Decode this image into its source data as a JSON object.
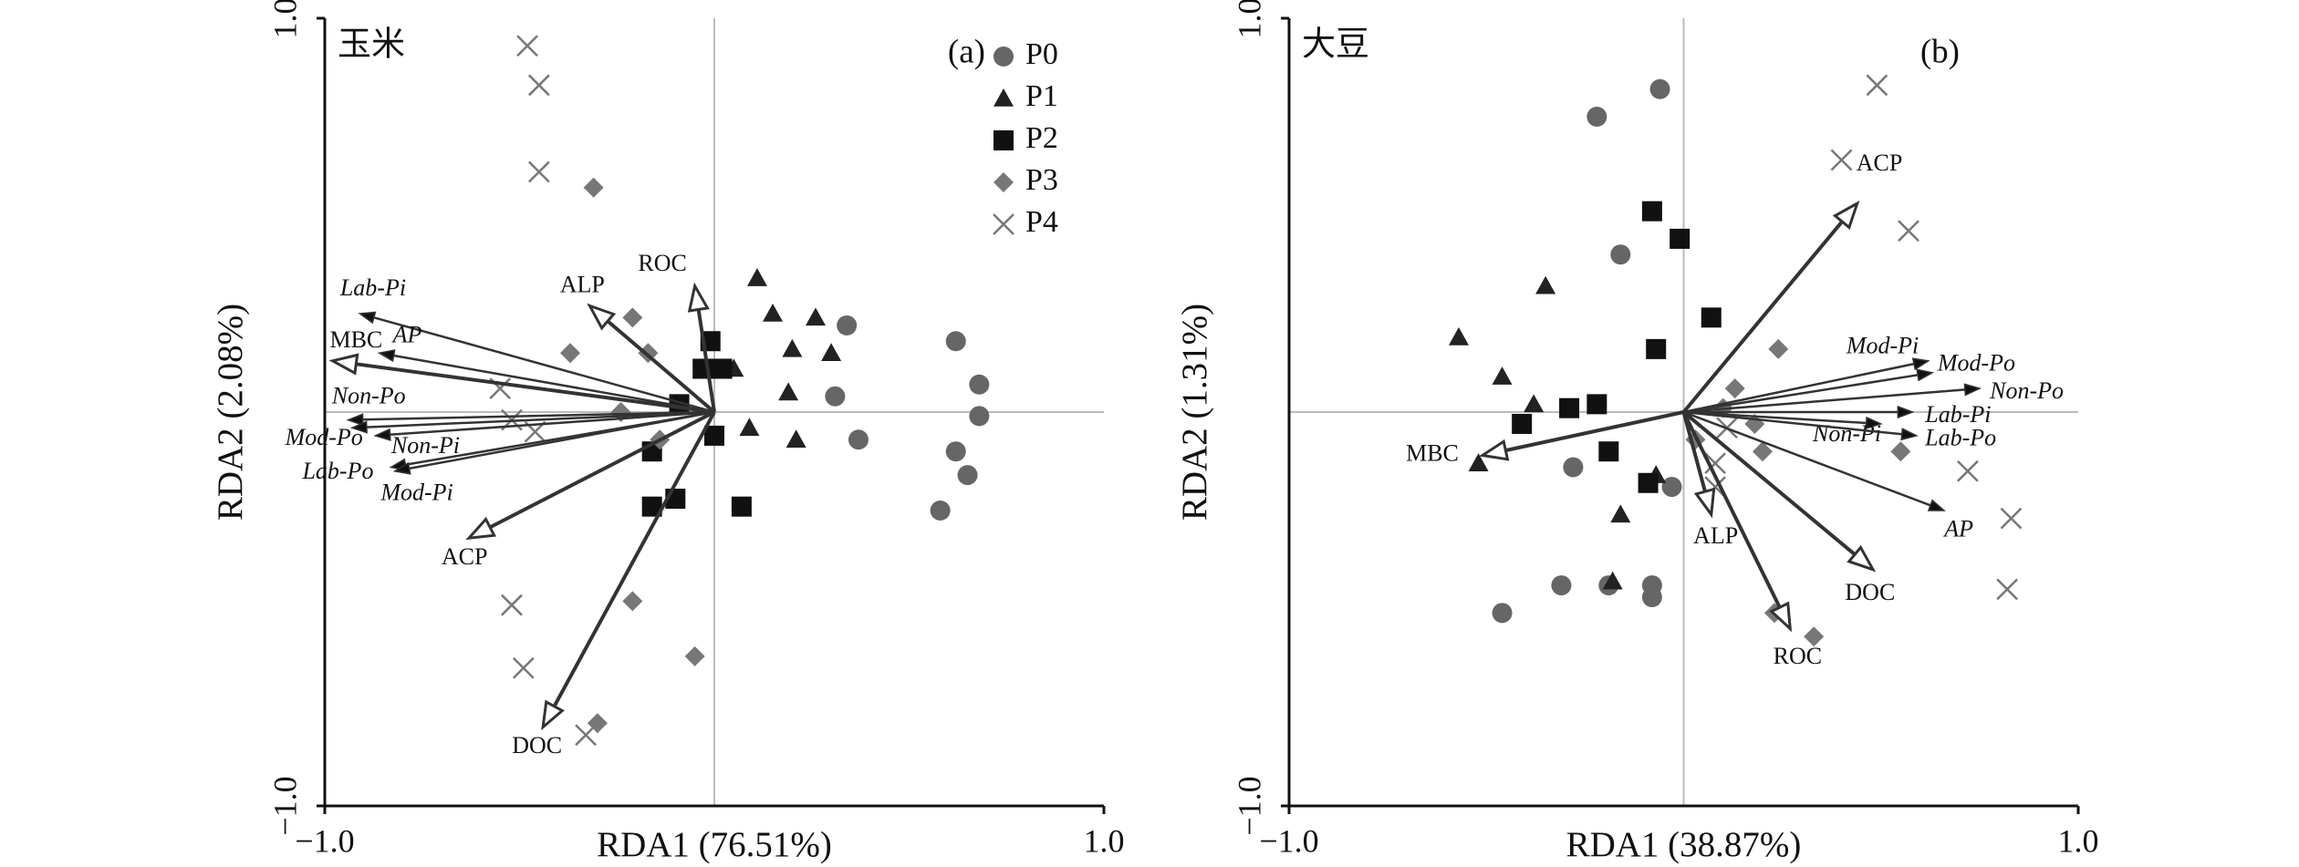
{
  "chart_data": [
    {
      "type": "biplot",
      "title": "玉米",
      "panel_label": "(a)",
      "xlabel": "RDA1 (76.51%)",
      "ylabel": "RDA2 (2.08%)",
      "xlim": [
        -1,
        1
      ],
      "ylim": [
        -1,
        1
      ],
      "xticks": [
        {
          "value": -1,
          "label": "−1.0"
        },
        {
          "value": 1,
          "label": "1.0"
        }
      ],
      "yticks": [
        {
          "value": -1,
          "label": "−1.0"
        },
        {
          "value": 1,
          "label": "1.0"
        }
      ],
      "legend": "upper right",
      "series": [
        {
          "name": "P0",
          "color": "#666666",
          "marker": "circle",
          "x": [
            0.34,
            0.31,
            0.37,
            0.62,
            0.68,
            0.68,
            0.62,
            0.65,
            0.58
          ],
          "y": [
            0.22,
            0.04,
            -0.07,
            0.18,
            0.07,
            -0.01,
            -0.1,
            -0.16,
            -0.25
          ]
        },
        {
          "name": "P1",
          "color": "#222222",
          "marker": "triangle",
          "x": [
            0.11,
            0.15,
            0.26,
            0.2,
            0.3,
            0.19,
            0.09,
            0.21,
            0.05
          ],
          "y": [
            0.34,
            0.25,
            0.24,
            0.16,
            0.15,
            0.05,
            -0.04,
            -0.07,
            0.11
          ]
        },
        {
          "name": "P2",
          "color": "#111111",
          "marker": "square",
          "x": [
            -0.01,
            -0.03,
            0.02,
            -0.09,
            0.0,
            -0.16,
            -0.1,
            -0.16,
            0.07
          ],
          "y": [
            0.18,
            0.11,
            0.11,
            0.02,
            -0.06,
            -0.1,
            -0.22,
            -0.24,
            -0.24
          ]
        },
        {
          "name": "P3",
          "color": "#777777",
          "marker": "diamond",
          "x": [
            -0.31,
            -0.21,
            -0.17,
            -0.37,
            -0.24,
            -0.14,
            -0.21,
            -0.05,
            -0.3
          ],
          "y": [
            0.57,
            0.24,
            0.15,
            0.15,
            0.0,
            -0.07,
            -0.48,
            -0.62,
            -0.79
          ]
        },
        {
          "name": "P4",
          "color": "#777777",
          "marker": "cross",
          "x": [
            -0.48,
            -0.45,
            -0.45,
            -0.55,
            -0.52,
            -0.46,
            -0.52,
            -0.49,
            -0.33
          ],
          "y": [
            0.93,
            0.83,
            0.61,
            0.06,
            -0.02,
            -0.05,
            -0.49,
            -0.65,
            -0.82
          ]
        }
      ],
      "arrows": [
        {
          "name": "Lab-Pi",
          "x": -0.91,
          "y": 0.25,
          "head": "filled",
          "style": "italic"
        },
        {
          "name": "AP",
          "x": -0.86,
          "y": 0.15,
          "head": "filled",
          "style": "italic"
        },
        {
          "name": "MBC",
          "x": -0.98,
          "y": 0.13,
          "head": "open",
          "style": "normal"
        },
        {
          "name": "Non-Po",
          "x": -0.94,
          "y": -0.02,
          "head": "filled",
          "style": "italic"
        },
        {
          "name": "Mod-Po",
          "x": -0.93,
          "y": -0.04,
          "head": "filled",
          "style": "italic"
        },
        {
          "name": "Non-Pi",
          "x": -0.87,
          "y": -0.06,
          "head": "filled",
          "style": "italic"
        },
        {
          "name": "Lab-Po",
          "x": -0.83,
          "y": -0.14,
          "head": "filled",
          "style": "italic"
        },
        {
          "name": "Mod-Pi",
          "x": -0.82,
          "y": -0.15,
          "head": "filled",
          "style": "italic"
        },
        {
          "name": "ACP",
          "x": -0.63,
          "y": -0.32,
          "head": "open",
          "style": "normal"
        },
        {
          "name": "ALP",
          "x": -0.32,
          "y": 0.27,
          "head": "open",
          "style": "normal"
        },
        {
          "name": "ROC",
          "x": -0.05,
          "y": 0.32,
          "head": "open",
          "style": "normal"
        },
        {
          "name": "DOC",
          "x": -0.44,
          "y": -0.8,
          "head": "open",
          "style": "normal"
        }
      ]
    },
    {
      "type": "biplot",
      "title": "大豆",
      "panel_label": "(b)",
      "xlabel": "RDA1 (38.87%)",
      "ylabel": "RDA2 (1.31%)",
      "xlim": [
        -1,
        1
      ],
      "ylim": [
        -1,
        1
      ],
      "xticks": [
        {
          "value": -1,
          "label": "−1.0"
        },
        {
          "value": 1,
          "label": "1.0"
        }
      ],
      "yticks": [
        {
          "value": -1,
          "label": "−1.0"
        },
        {
          "value": 1,
          "label": "1.0"
        }
      ],
      "series": [
        {
          "color": "#666666",
          "marker": "circle",
          "x": [
            -0.22,
            -0.06,
            -0.16,
            -0.28,
            -0.46,
            -0.31,
            -0.19,
            -0.08,
            -0.08,
            -0.03
          ],
          "y": [
            0.75,
            0.82,
            0.4,
            -0.14,
            -0.51,
            -0.44,
            -0.44,
            -0.44,
            -0.47,
            -0.19
          ]
        },
        {
          "color": "#222222",
          "marker": "triangle",
          "x": [
            -0.35,
            -0.57,
            -0.46,
            -0.38,
            -0.52,
            -0.16,
            -0.18,
            -0.07
          ],
          "y": [
            0.32,
            0.19,
            0.09,
            0.02,
            -0.13,
            -0.26,
            -0.43,
            -0.16
          ]
        },
        {
          "color": "#111111",
          "marker": "square",
          "x": [
            -0.08,
            -0.01,
            0.07,
            -0.07,
            -0.22,
            -0.29,
            -0.41,
            -0.19,
            -0.09
          ],
          "y": [
            0.51,
            0.44,
            0.24,
            0.16,
            0.02,
            0.01,
            -0.03,
            -0.1,
            -0.18
          ]
        },
        {
          "color": "#777777",
          "marker": "diamond",
          "x": [
            0.24,
            0.13,
            0.1,
            0.18,
            0.2,
            0.55,
            0.03,
            0.23,
            0.33
          ],
          "y": [
            0.16,
            0.06,
            0.01,
            -0.03,
            -0.1,
            -0.1,
            -0.07,
            -0.51,
            -0.57
          ]
        },
        {
          "color": "#777777",
          "marker": "cross",
          "x": [
            0.49,
            0.4,
            0.57,
            0.11,
            0.08,
            0.08,
            0.72,
            0.83,
            0.82
          ],
          "y": [
            0.83,
            0.64,
            0.46,
            -0.04,
            -0.13,
            -0.19,
            -0.15,
            -0.27,
            -0.45
          ]
        }
      ],
      "arrows": [
        {
          "name": "ACP",
          "x": 0.44,
          "y": 0.53,
          "head": "open",
          "style": "normal"
        },
        {
          "name": "Mod-Pi",
          "x": 0.62,
          "y": 0.13,
          "head": "filled",
          "style": "italic"
        },
        {
          "name": "Mod-Po",
          "x": 0.63,
          "y": 0.1,
          "head": "filled",
          "style": "italic"
        },
        {
          "name": "Non-Po",
          "x": 0.75,
          "y": 0.06,
          "head": "filled",
          "style": "italic"
        },
        {
          "name": "Lab-Pi",
          "x": 0.58,
          "y": 0.0,
          "head": "filled",
          "style": "italic"
        },
        {
          "name": "Non-Pi",
          "x": 0.5,
          "y": -0.03,
          "head": "filled",
          "style": "italic"
        },
        {
          "name": "Lab-Po",
          "x": 0.59,
          "y": -0.06,
          "head": "filled",
          "style": "italic"
        },
        {
          "name": "AP",
          "x": 0.66,
          "y": -0.25,
          "head": "filled",
          "style": "italic"
        },
        {
          "name": "DOC",
          "x": 0.48,
          "y": -0.4,
          "head": "open",
          "style": "normal"
        },
        {
          "name": "ROC",
          "x": 0.27,
          "y": -0.55,
          "head": "open",
          "style": "normal"
        },
        {
          "name": "ALP",
          "x": 0.07,
          "y": -0.26,
          "head": "open",
          "style": "normal"
        },
        {
          "name": "MBC",
          "x": -0.51,
          "y": -0.11,
          "head": "open",
          "style": "normal"
        }
      ]
    }
  ]
}
